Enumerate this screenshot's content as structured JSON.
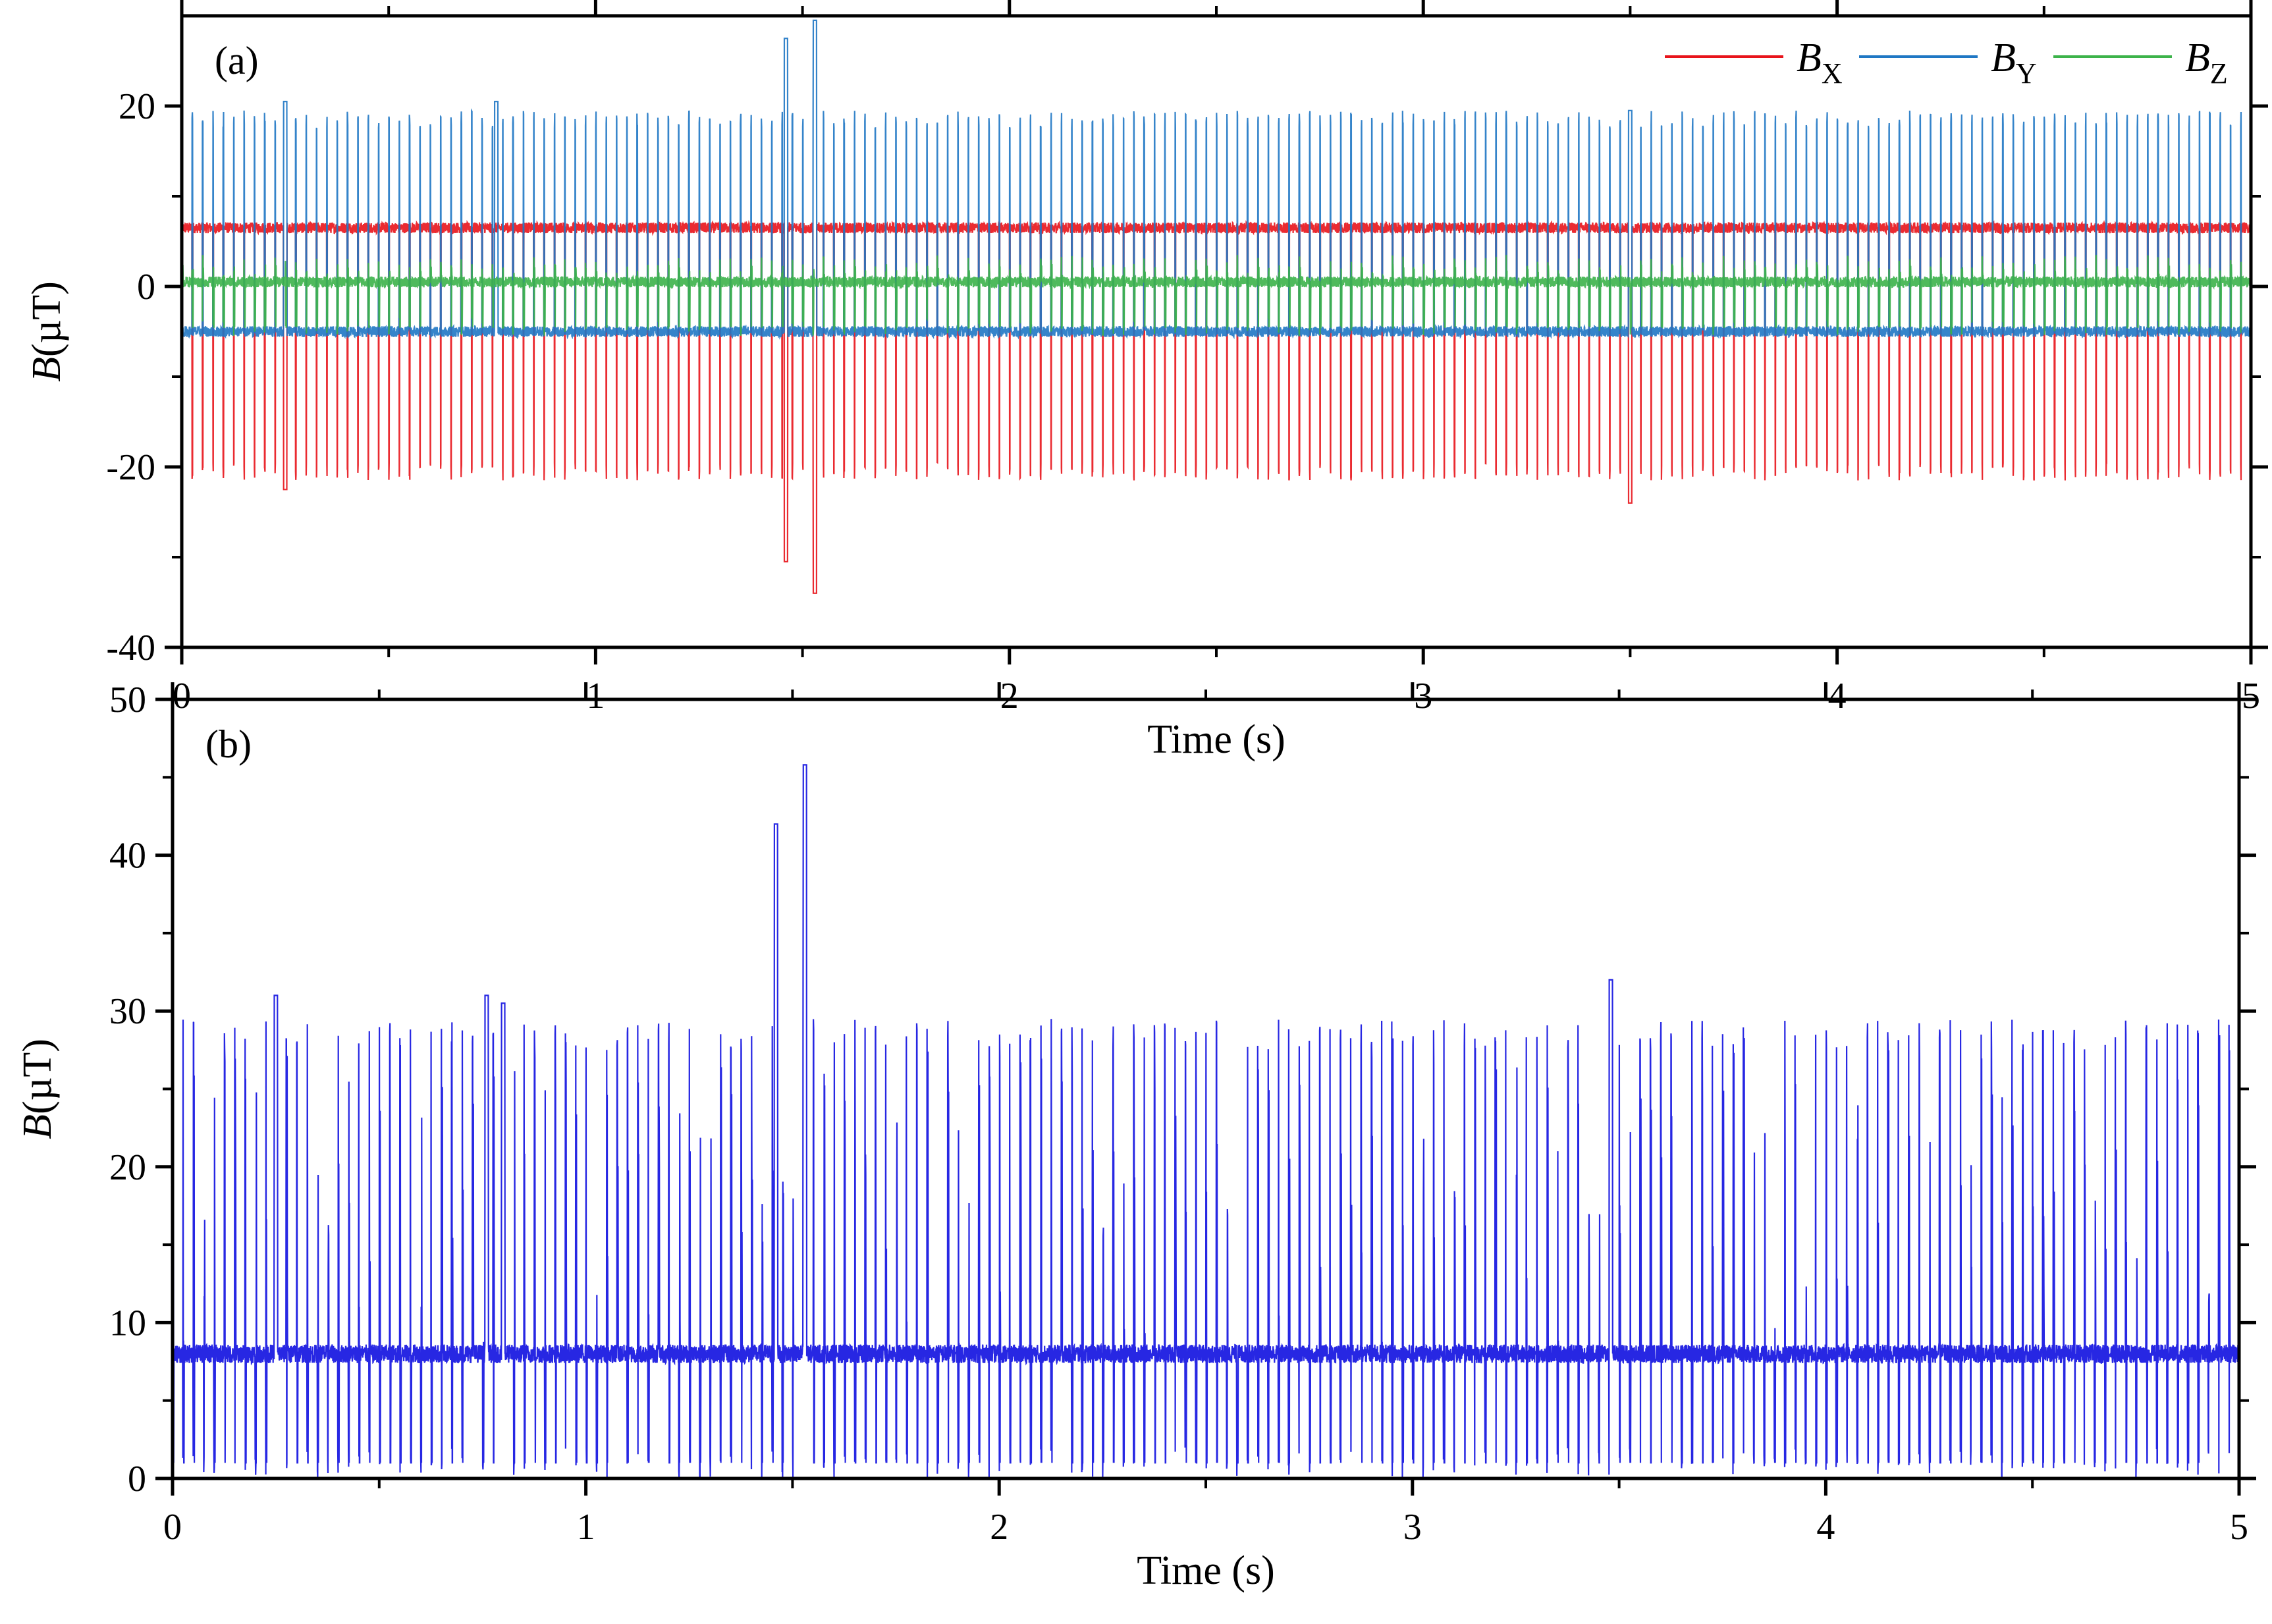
{
  "chart_data": [
    {
      "type": "line",
      "panel_label": "(a)",
      "xlabel": "Time (s)",
      "ylabel": {
        "symbol": "B",
        "unit": "(µT)"
      },
      "xlim": [
        0,
        5
      ],
      "ylim": [
        -40,
        30
      ],
      "xticks": [
        0,
        1,
        2,
        3,
        4,
        5
      ],
      "yticks": [
        -40,
        -20,
        0,
        20
      ],
      "grid": false,
      "legend_position": "top-right",
      "series": [
        {
          "name": "B",
          "name_sub": "X",
          "color": "#e8141b",
          "signal": {
            "baseline": 6.5,
            "low": -20.5,
            "pulse_rate_hz": 40,
            "spikes": [
              {
                "t": 0.25,
                "value": -22.5
              },
              {
                "t": 1.46,
                "value": -30.5
              },
              {
                "t": 1.53,
                "value": -34.0
              },
              {
                "t": 3.5,
                "value": -24.0
              }
            ]
          }
        },
        {
          "name": "B",
          "name_sub": "Y",
          "color": "#1f77c4",
          "signal": {
            "baseline": -5.0,
            "high": 18.5,
            "pulse_rate_hz": 40,
            "spikes": [
              {
                "t": 0.25,
                "value": 20.5
              },
              {
                "t": 0.76,
                "value": 20.5
              },
              {
                "t": 1.46,
                "value": 27.5
              },
              {
                "t": 1.53,
                "value": 29.5
              },
              {
                "t": 3.5,
                "value": 19.5
              }
            ]
          }
        },
        {
          "name": "B",
          "name_sub": "Z",
          "color": "#3cb34a",
          "signal": {
            "baseline": 0.5,
            "low": -4.5,
            "high": 2.5,
            "pulse_rate_hz": 40
          }
        }
      ]
    },
    {
      "type": "line",
      "panel_label": "(b)",
      "xlabel": "Time (s)",
      "ylabel": {
        "symbol": "B",
        "unit": "(µT)"
      },
      "xlim": [
        0,
        5
      ],
      "ylim": [
        0,
        50
      ],
      "xticks": [
        0,
        1,
        2,
        3,
        4,
        5
      ],
      "yticks": [
        0,
        10,
        20,
        30,
        40,
        50
      ],
      "grid": false,
      "series": [
        {
          "name": "",
          "color": "#1010e0",
          "signal": {
            "baseline": 8.0,
            "low": 1.0,
            "high": 28.5,
            "pulse_rate_hz": 40,
            "spikes": [
              {
                "t": 0.25,
                "value": 31.0
              },
              {
                "t": 0.76,
                "value": 31.0
              },
              {
                "t": 0.8,
                "value": 30.5
              },
              {
                "t": 1.46,
                "value": 42.0
              },
              {
                "t": 1.53,
                "value": 45.8
              },
              {
                "t": 3.48,
                "value": 32.0
              }
            ]
          }
        }
      ]
    }
  ]
}
